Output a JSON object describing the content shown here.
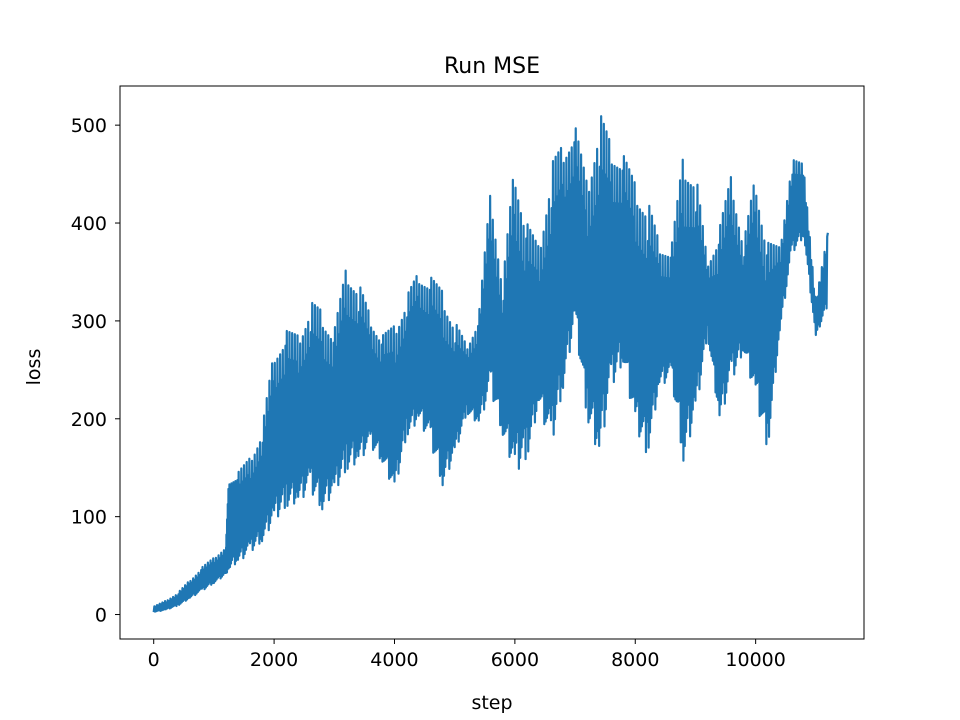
{
  "chart_data": {
    "type": "line",
    "title": "Run MSE",
    "xlabel": "step",
    "ylabel": "loss",
    "xlim": [
      -560,
      11800
    ],
    "ylim": [
      -25,
      540
    ],
    "xticks": [
      0,
      2000,
      4000,
      6000,
      8000,
      10000
    ],
    "yticks": [
      0,
      100,
      200,
      300,
      400,
      500
    ],
    "grid": false,
    "legend": "none",
    "series": [
      {
        "color": "#1f77b4",
        "x": [
          0,
          200,
          400,
          600,
          800,
          1000,
          1200,
          1250,
          1400,
          1600,
          1800,
          2000,
          2200,
          2400,
          2600,
          2800,
          3000,
          3200,
          3400,
          3600,
          3800,
          4000,
          4200,
          4400,
          4600,
          4800,
          5000,
          5200,
          5400,
          5600,
          5800,
          6000,
          6200,
          6400,
          6600,
          6800,
          7000,
          7200,
          7400,
          7600,
          7800,
          8000,
          8200,
          8400,
          8600,
          8800,
          9000,
          9200,
          9400,
          9600,
          9800,
          10000,
          10200,
          10400,
          10600,
          10800,
          11000,
          11200
        ],
        "low": [
          2,
          4,
          8,
          15,
          22,
          30,
          38,
          40,
          45,
          55,
          65,
          80,
          95,
          100,
          110,
          90,
          110,
          130,
          140,
          160,
          145,
          110,
          170,
          185,
          160,
          115,
          150,
          200,
          185,
          210,
          170,
          115,
          140,
          200,
          145,
          210,
          280,
          180,
          130,
          210,
          240,
          170,
          140,
          220,
          230,
          130,
          180,
          280,
          180,
          220,
          260,
          200,
          150,
          280,
          360,
          380,
          280,
          310
        ],
        "high": [
          8,
          14,
          22,
          35,
          48,
          58,
          70,
          140,
          145,
          160,
          190,
          270,
          290,
          285,
          320,
          310,
          290,
          355,
          340,
          305,
          285,
          295,
          325,
          350,
          345,
          330,
          300,
          275,
          305,
          435,
          340,
          465,
          400,
          375,
          460,
          480,
          500,
          440,
          515,
          480,
          470,
          440,
          425,
          380,
          375,
          470,
          455,
          360,
          395,
          450,
          380,
          450,
          380,
          375,
          465,
          460,
          320,
          390
        ]
      }
    ]
  }
}
